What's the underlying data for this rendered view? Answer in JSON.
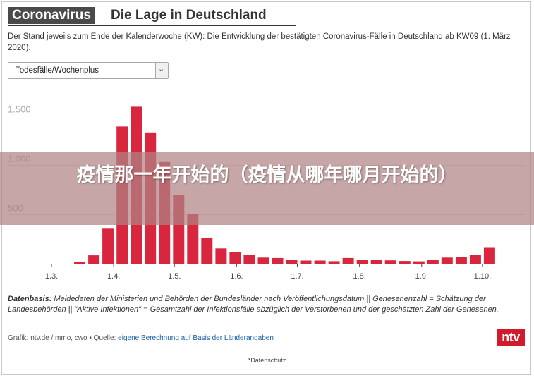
{
  "header": {
    "tag": "Coronavirus",
    "title": "Die Lage in Deutschland"
  },
  "description": "Der Stand jeweils zum Ende der Kalenderwoche (KW): Die Entwicklung der bestätigten Coronavirus-Fälle in Deutschland ab KW09 (1. März 2020).",
  "dropdown": {
    "selected": "Todesfälle/Wochenplus",
    "icon": "chevron-down-icon"
  },
  "chart_data": {
    "type": "bar",
    "ylim": [
      0,
      1600
    ],
    "y_ticks": [
      {
        "value": 500,
        "label": "500"
      },
      {
        "value": 1000,
        "label": "1.000"
      },
      {
        "value": 1500,
        "label": "1.500"
      }
    ],
    "x_ticks": [
      {
        "pos": 0,
        "label": "1.3."
      },
      {
        "pos": 4.4,
        "label": "1.4."
      },
      {
        "pos": 8.7,
        "label": "1.5."
      },
      {
        "pos": 13.1,
        "label": "1.6."
      },
      {
        "pos": 17.4,
        "label": "1.7."
      },
      {
        "pos": 21.8,
        "label": "1.8."
      },
      {
        "pos": 26.2,
        "label": "1.9."
      },
      {
        "pos": 30.5,
        "label": "1.10."
      }
    ],
    "values": [
      0,
      0,
      15,
      85,
      355,
      1390,
      1590,
      1330,
      1030,
      700,
      500,
      260,
      155,
      118,
      92,
      62,
      58,
      36,
      32,
      32,
      26,
      58,
      38,
      42,
      34,
      28,
      24,
      40,
      62,
      68,
      92,
      168
    ],
    "bar_color": "#d7263d",
    "grid": true
  },
  "basis": {
    "label": "Datenbasis:",
    "text": "Meldedaten der Ministerien und Behörden der Bundesländer nach Veröffentlichungsdatum || Genesenenzahl = Schätzung der Landesbehörden || \"Aktive Infektionen\" = Gesamtzahl der Infektionsfälle abzüglich der Verstorbenen und der geschätzten Zahl der Genesenen."
  },
  "credit": {
    "prefix": "Grafik: ntv.de / mmo, cwo • Quelle: ",
    "link": "eigene Berechnung auf Basis der Länderangaben"
  },
  "logo": "ntv",
  "privacy": "*Datenschutz",
  "overlay": {
    "text": "疫情那一年开始的（疫情从哪年哪月开始的）"
  },
  "colors": {
    "bar": "#d7263d",
    "logo": "#d11b2c",
    "overlay": "#b08484"
  }
}
